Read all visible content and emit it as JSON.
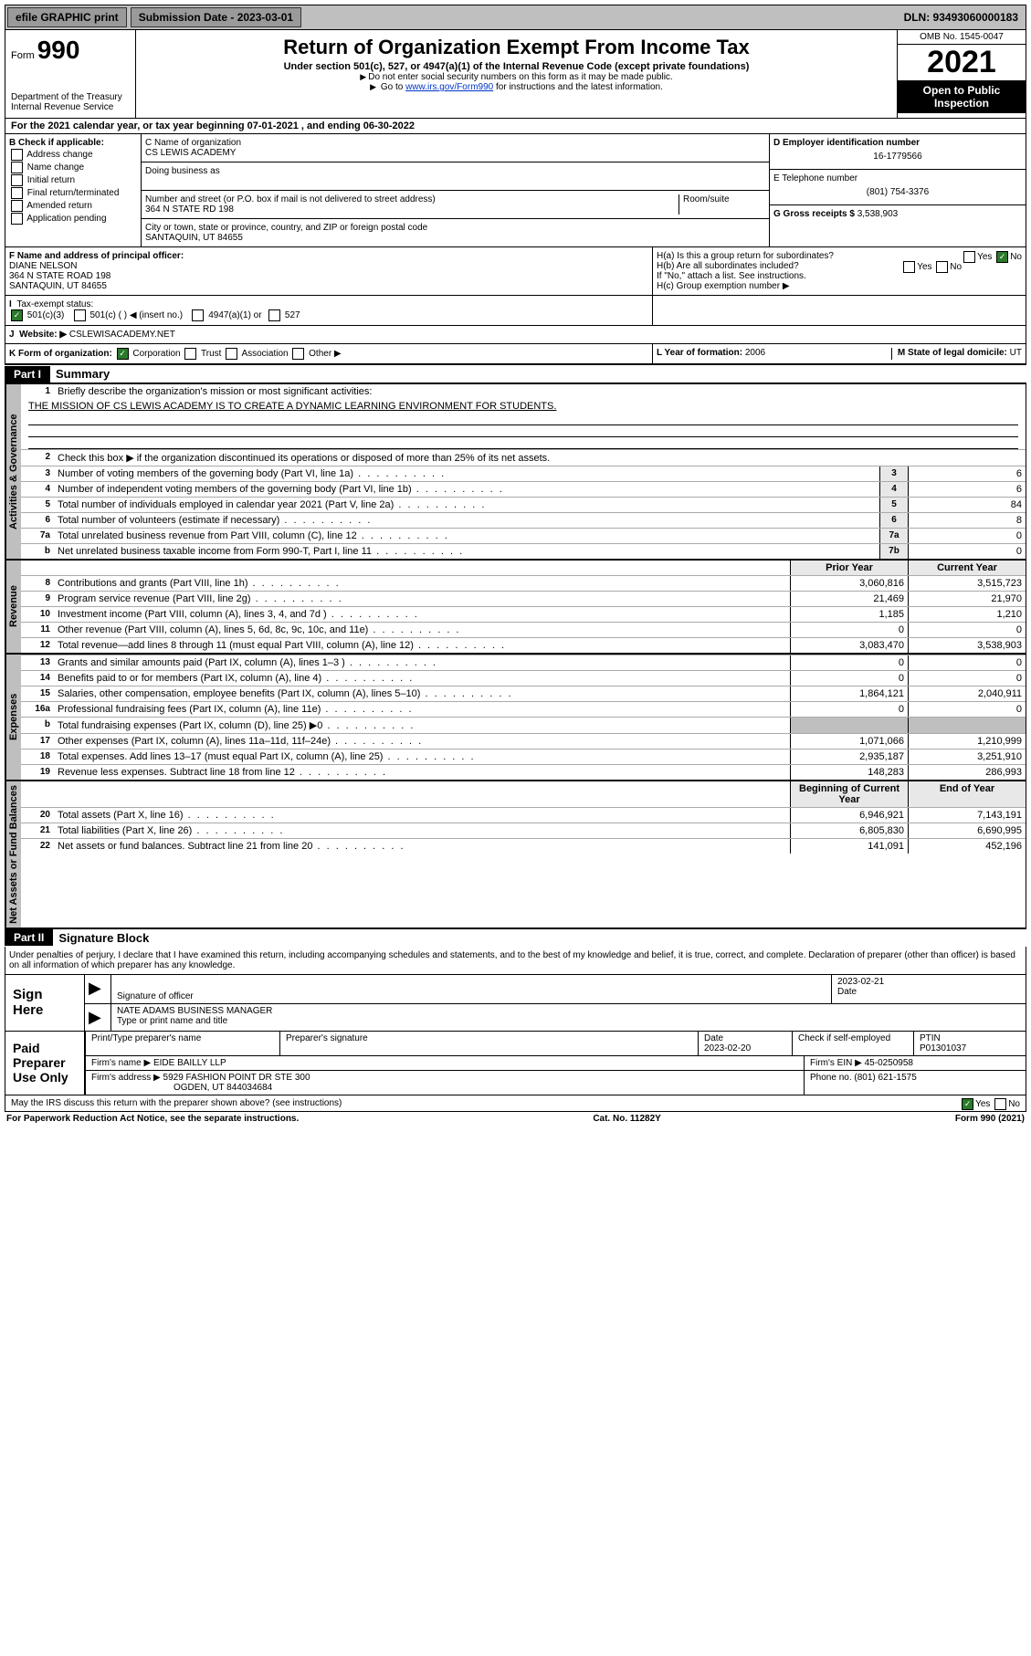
{
  "topbar": {
    "efile": "efile GRAPHIC print",
    "subdate_label": "Submission Date - 2023-03-01",
    "dln": "DLN: 93493060000183"
  },
  "header": {
    "form_prefix": "Form",
    "form_num": "990",
    "dept": "Department of the Treasury",
    "irs": "Internal Revenue Service",
    "title": "Return of Organization Exempt From Income Tax",
    "sub": "Under section 501(c), 527, or 4947(a)(1) of the Internal Revenue Code (except private foundations)",
    "note1": "Do not enter social security numbers on this form as it may be made public.",
    "note2_pre": "Go to ",
    "note2_link": "www.irs.gov/Form990",
    "note2_post": " for instructions and the latest information.",
    "omb": "OMB No. 1545-0047",
    "year": "2021",
    "open": "Open to Public Inspection"
  },
  "lineA": "For the 2021 calendar year, or tax year beginning 07-01-2021   , and ending 06-30-2022",
  "boxB": {
    "title": "B Check if applicable:",
    "items": [
      "Address change",
      "Name change",
      "Initial return",
      "Final return/terminated",
      "Amended return",
      "Application pending"
    ]
  },
  "boxC": {
    "name_label": "C Name of organization",
    "name": "CS LEWIS ACADEMY",
    "dba_label": "Doing business as",
    "addr_label": "Number and street (or P.O. box if mail is not delivered to street address)",
    "room_label": "Room/suite",
    "addr": "364 N STATE RD 198",
    "city_label": "City or town, state or province, country, and ZIP or foreign postal code",
    "city": "SANTAQUIN, UT  84655"
  },
  "boxD": {
    "label": "D Employer identification number",
    "val": "16-1779566"
  },
  "boxE": {
    "label": "E Telephone number",
    "val": "(801) 754-3376"
  },
  "boxG": {
    "label": "G Gross receipts $",
    "val": "3,538,903"
  },
  "boxF": {
    "label": "F  Name and address of principal officer:",
    "name": "DIANE NELSON",
    "addr1": "364 N STATE ROAD 198",
    "addr2": "SANTAQUIN, UT  84655"
  },
  "boxH": {
    "a": "H(a)  Is this a group return for subordinates?",
    "b": "H(b)  Are all subordinates included?",
    "bnote": "If \"No,\" attach a list. See instructions.",
    "c": "H(c)  Group exemption number ▶",
    "yes": "Yes",
    "no": "No"
  },
  "boxI": {
    "label": "Tax-exempt status:",
    "o1": "501(c)(3)",
    "o2": "501(c) (  ) ◀ (insert no.)",
    "o3": "4947(a)(1) or",
    "o4": "527"
  },
  "boxJ": {
    "label": "Website: ▶",
    "val": "CSLEWISACADEMY.NET"
  },
  "boxK": {
    "label": "K Form of organization:",
    "corp": "Corporation",
    "trust": "Trust",
    "assoc": "Association",
    "other": "Other ▶"
  },
  "boxL": {
    "label": "L Year of formation:",
    "val": "2006"
  },
  "boxM": {
    "label": "M State of legal domicile:",
    "val": "UT"
  },
  "part1": {
    "hdr": "Part I",
    "title": "Summary",
    "l1": "Briefly describe the organization's mission or most significant activities:",
    "mission": "THE MISSION OF CS LEWIS ACADEMY IS TO CREATE A DYNAMIC LEARNING ENVIRONMENT FOR STUDENTS.",
    "l2": "Check this box ▶       if the organization discontinued its operations or disposed of more than 25% of its net assets.",
    "sideA": "Activities & Governance",
    "sideR": "Revenue",
    "sideE": "Expenses",
    "sideN": "Net Assets or Fund Balances",
    "rows_g": [
      {
        "n": "3",
        "d": "Number of voting members of the governing body (Part VI, line 1a)",
        "b": "3",
        "v": "6"
      },
      {
        "n": "4",
        "d": "Number of independent voting members of the governing body (Part VI, line 1b)",
        "b": "4",
        "v": "6"
      },
      {
        "n": "5",
        "d": "Total number of individuals employed in calendar year 2021 (Part V, line 2a)",
        "b": "5",
        "v": "84"
      },
      {
        "n": "6",
        "d": "Total number of volunteers (estimate if necessary)",
        "b": "6",
        "v": "8"
      },
      {
        "n": "7a",
        "d": "Total unrelated business revenue from Part VIII, column (C), line 12",
        "b": "7a",
        "v": "0"
      },
      {
        "n": "b",
        "d": "Net unrelated business taxable income from Form 990-T, Part I, line 11",
        "b": "7b",
        "v": "0"
      }
    ],
    "hdr_prior": "Prior Year",
    "hdr_curr": "Current Year",
    "hdr_begin": "Beginning of Current Year",
    "hdr_end": "End of Year",
    "rows_r": [
      {
        "n": "8",
        "d": "Contributions and grants (Part VIII, line 1h)",
        "p": "3,060,816",
        "c": "3,515,723"
      },
      {
        "n": "9",
        "d": "Program service revenue (Part VIII, line 2g)",
        "p": "21,469",
        "c": "21,970"
      },
      {
        "n": "10",
        "d": "Investment income (Part VIII, column (A), lines 3, 4, and 7d )",
        "p": "1,185",
        "c": "1,210"
      },
      {
        "n": "11",
        "d": "Other revenue (Part VIII, column (A), lines 5, 6d, 8c, 9c, 10c, and 11e)",
        "p": "0",
        "c": "0"
      },
      {
        "n": "12",
        "d": "Total revenue—add lines 8 through 11 (must equal Part VIII, column (A), line 12)",
        "p": "3,083,470",
        "c": "3,538,903"
      }
    ],
    "rows_e": [
      {
        "n": "13",
        "d": "Grants and similar amounts paid (Part IX, column (A), lines 1–3 )",
        "p": "0",
        "c": "0"
      },
      {
        "n": "14",
        "d": "Benefits paid to or for members (Part IX, column (A), line 4)",
        "p": "0",
        "c": "0"
      },
      {
        "n": "15",
        "d": "Salaries, other compensation, employee benefits (Part IX, column (A), lines 5–10)",
        "p": "1,864,121",
        "c": "2,040,911"
      },
      {
        "n": "16a",
        "d": "Professional fundraising fees (Part IX, column (A), line 11e)",
        "p": "0",
        "c": "0"
      },
      {
        "n": "b",
        "d": "Total fundraising expenses (Part IX, column (D), line 25) ▶0",
        "p": "",
        "c": "",
        "shade": true
      },
      {
        "n": "17",
        "d": "Other expenses (Part IX, column (A), lines 11a–11d, 11f–24e)",
        "p": "1,071,066",
        "c": "1,210,999"
      },
      {
        "n": "18",
        "d": "Total expenses. Add lines 13–17 (must equal Part IX, column (A), line 25)",
        "p": "2,935,187",
        "c": "3,251,910"
      },
      {
        "n": "19",
        "d": "Revenue less expenses. Subtract line 18 from line 12",
        "p": "148,283",
        "c": "286,993"
      }
    ],
    "rows_n": [
      {
        "n": "20",
        "d": "Total assets (Part X, line 16)",
        "p": "6,946,921",
        "c": "7,143,191"
      },
      {
        "n": "21",
        "d": "Total liabilities (Part X, line 26)",
        "p": "6,805,830",
        "c": "6,690,995"
      },
      {
        "n": "22",
        "d": "Net assets or fund balances. Subtract line 21 from line 20",
        "p": "141,091",
        "c": "452,196"
      }
    ]
  },
  "part2": {
    "hdr": "Part II",
    "title": "Signature Block",
    "declare": "Under penalties of perjury, I declare that I have examined this return, including accompanying schedules and statements, and to the best of my knowledge and belief, it is true, correct, and complete. Declaration of preparer (other than officer) is based on all information of which preparer has any knowledge.",
    "sign": "Sign Here",
    "sig_label": "Signature of officer",
    "date_label": "Date",
    "date1": "2023-02-21",
    "name_label": "Type or print name and title",
    "name": "NATE ADAMS  BUSINESS MANAGER",
    "paid": "Paid Preparer Use Only",
    "pname_label": "Print/Type preparer's name",
    "psig_label": "Preparer's signature",
    "pdate_label": "Date",
    "pdate": "2023-02-20",
    "pcheck": "Check        if self-employed",
    "ptin_label": "PTIN",
    "ptin": "P01301037",
    "firm_label": "Firm's name      ▶",
    "firm": "EIDE BAILLY LLP",
    "fein_label": "Firm's EIN ▶",
    "fein": "45-0250958",
    "faddr_label": "Firm's address  ▶",
    "faddr1": "5929 FASHION POINT DR STE 300",
    "faddr2": "OGDEN, UT  844034684",
    "phone_label": "Phone no.",
    "phone": "(801) 621-1575",
    "discuss": "May the IRS discuss this return with the preparer shown above? (see instructions)",
    "yes": "Yes",
    "no": "No"
  },
  "footer": {
    "left": "For Paperwork Reduction Act Notice, see the separate instructions.",
    "mid": "Cat. No. 11282Y",
    "right": "Form 990 (2021)"
  }
}
